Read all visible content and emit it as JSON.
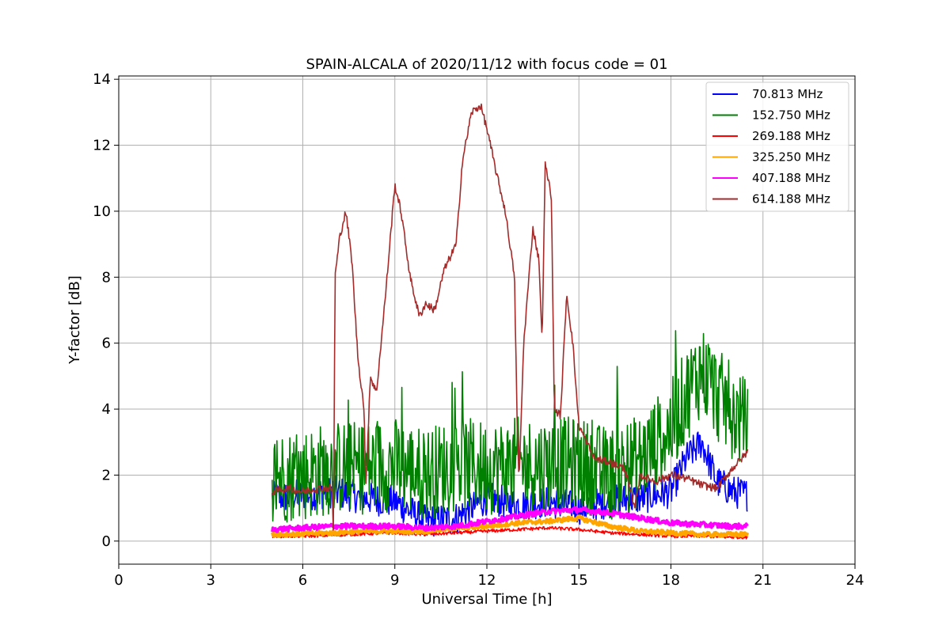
{
  "chart_data": {
    "type": "line",
    "title": "SPAIN-ALCALA of 2020/11/12 with focus code = 01",
    "xlabel": "Universal Time [h]",
    "ylabel": "Y-factor [dB]",
    "xlim": [
      0,
      24
    ],
    "ylim": [
      -0.7,
      14.1
    ],
    "xticks": [
      0,
      3,
      6,
      9,
      12,
      15,
      18,
      21,
      24
    ],
    "yticks": [
      0,
      2,
      4,
      6,
      8,
      10,
      12,
      14
    ],
    "grid": true,
    "legend_position": "top-right",
    "series": [
      {
        "name": " 70.813 MHz",
        "color": "#0000ff",
        "noise": 0.5,
        "x": [
          5.0,
          6.0,
          7.0,
          8.0,
          9.0,
          10.0,
          11.0,
          12.0,
          13.0,
          14.0,
          15.0,
          16.0,
          17.0,
          18.0,
          18.5,
          19.0,
          19.5,
          20.0,
          20.5
        ],
        "y": [
          1.3,
          1.4,
          1.5,
          1.3,
          1.2,
          0.6,
          0.7,
          1.3,
          1.1,
          1.2,
          1.0,
          1.2,
          1.3,
          1.5,
          2.5,
          3.0,
          1.8,
          1.5,
          1.4
        ]
      },
      {
        "name": "152.750 MHz",
        "color": "#008000",
        "noise": 1.8,
        "x": [
          5.0,
          6.0,
          7.0,
          8.0,
          9.0,
          10.0,
          11.0,
          12.0,
          13.0,
          14.0,
          15.0,
          16.0,
          17.0,
          18.0,
          18.5,
          19.0,
          19.5,
          20.0,
          20.5
        ],
        "y": [
          1.5,
          1.6,
          1.8,
          1.8,
          1.9,
          1.6,
          1.9,
          1.8,
          1.9,
          1.9,
          1.9,
          1.6,
          2.0,
          3.0,
          4.0,
          4.8,
          4.0,
          3.5,
          3.0
        ]
      },
      {
        "name": "269.188 MHz",
        "color": "#ff0000",
        "noise": 0.05,
        "x": [
          5.0,
          6.0,
          7.0,
          8.0,
          9.0,
          10.0,
          11.0,
          12.0,
          13.0,
          14.0,
          15.0,
          16.0,
          17.0,
          18.0,
          19.0,
          20.0,
          20.5
        ],
        "y": [
          0.15,
          0.15,
          0.18,
          0.22,
          0.25,
          0.2,
          0.25,
          0.3,
          0.35,
          0.4,
          0.35,
          0.25,
          0.2,
          0.15,
          0.15,
          0.12,
          0.12
        ]
      },
      {
        "name": "325.250 MHz",
        "color": "#ffa500",
        "noise": 0.07,
        "x": [
          5.0,
          6.0,
          7.0,
          8.0,
          9.0,
          10.0,
          11.0,
          12.0,
          13.0,
          14.0,
          15.0,
          16.0,
          17.0,
          18.0,
          19.0,
          20.0,
          20.5
        ],
        "y": [
          0.2,
          0.22,
          0.25,
          0.3,
          0.3,
          0.3,
          0.4,
          0.45,
          0.55,
          0.6,
          0.7,
          0.45,
          0.3,
          0.25,
          0.2,
          0.2,
          0.2
        ]
      },
      {
        "name": "407.188 MHz",
        "color": "#ff00ff",
        "noise": 0.08,
        "x": [
          5.0,
          6.0,
          7.0,
          8.0,
          9.0,
          10.0,
          11.0,
          12.0,
          13.0,
          14.0,
          15.0,
          16.0,
          17.0,
          18.0,
          19.0,
          20.0,
          20.5
        ],
        "y": [
          0.35,
          0.4,
          0.45,
          0.45,
          0.45,
          0.4,
          0.45,
          0.6,
          0.75,
          0.9,
          0.95,
          0.85,
          0.7,
          0.55,
          0.5,
          0.45,
          0.45
        ]
      },
      {
        "name": "614.188 MHz",
        "color": "#a52a2a",
        "noise": 0.12,
        "x": [
          5.0,
          5.5,
          6.0,
          6.5,
          6.95,
          7.0,
          7.05,
          7.2,
          7.4,
          7.6,
          7.8,
          8.0,
          8.05,
          8.2,
          8.4,
          8.7,
          9.0,
          9.2,
          9.5,
          9.8,
          10.0,
          10.3,
          10.6,
          11.0,
          11.2,
          11.5,
          11.8,
          12.0,
          12.3,
          12.6,
          12.9,
          13.0,
          13.05,
          13.2,
          13.5,
          13.7,
          13.8,
          13.9,
          14.1,
          14.2,
          14.4,
          14.6,
          14.8,
          15.0,
          15.5,
          16.0,
          16.5,
          16.8,
          17.0,
          17.5,
          18.0,
          18.5,
          19.0,
          19.5,
          20.0,
          20.5
        ],
        "y": [
          1.5,
          1.6,
          1.5,
          1.6,
          1.6,
          0.1,
          8.0,
          9.2,
          10.0,
          8.5,
          5.5,
          4.0,
          1.5,
          5.0,
          4.5,
          7.5,
          10.8,
          10.0,
          8.0,
          6.8,
          7.2,
          7.0,
          8.2,
          9.0,
          11.5,
          13.0,
          13.2,
          12.5,
          11.2,
          10.0,
          8.0,
          3.0,
          1.8,
          6.0,
          9.5,
          8.5,
          6.0,
          11.4,
          10.5,
          4.0,
          3.8,
          7.5,
          6.0,
          3.5,
          2.5,
          2.4,
          2.2,
          1.0,
          2.0,
          1.8,
          2.0,
          1.9,
          1.7,
          1.6,
          2.2,
          2.7
        ]
      }
    ]
  }
}
